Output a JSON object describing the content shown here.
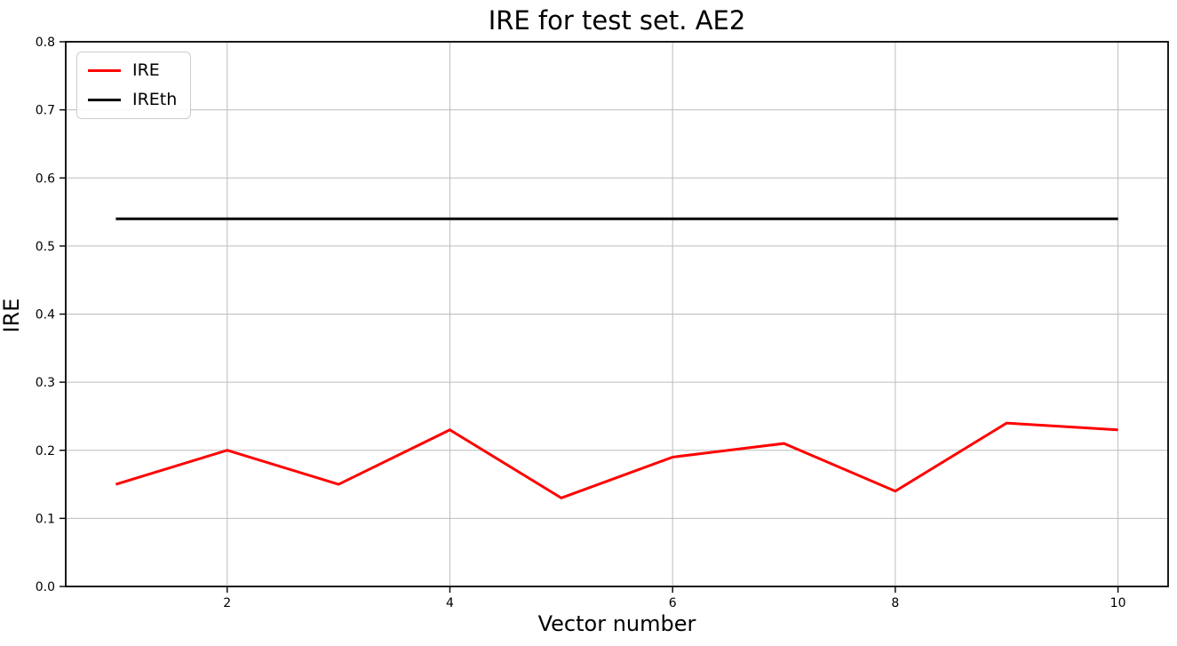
{
  "chart_data": {
    "type": "line",
    "title": "IRE for test set. AE2",
    "xlabel": "Vector number",
    "ylabel": "IRE",
    "x": [
      1,
      2,
      3,
      4,
      5,
      6,
      7,
      8,
      9,
      10
    ],
    "series": [
      {
        "name": "IRE",
        "color": "#ff0000",
        "values": [
          0.15,
          0.2,
          0.15,
          0.23,
          0.13,
          0.19,
          0.21,
          0.14,
          0.24,
          0.23
        ]
      },
      {
        "name": "IREth",
        "color": "#000000",
        "values": [
          0.54,
          0.54,
          0.54,
          0.54,
          0.54,
          0.54,
          0.54,
          0.54,
          0.54,
          0.54
        ]
      }
    ],
    "xlim": [
      0.55,
      10.45
    ],
    "ylim": [
      0.0,
      0.8
    ],
    "xticks": {
      "values": [
        2,
        4,
        6,
        8,
        10
      ],
      "labels": [
        "2",
        "4",
        "6",
        "8",
        "10"
      ]
    },
    "yticks": {
      "values": [
        0.0,
        0.1,
        0.2,
        0.3,
        0.4,
        0.5,
        0.6,
        0.7,
        0.8
      ],
      "labels": [
        "0.0",
        "0.1",
        "0.2",
        "0.3",
        "0.4",
        "0.5",
        "0.6",
        "0.7",
        "0.8"
      ]
    },
    "grid": true,
    "legend_position": "upper left",
    "line_width": 3,
    "colors": {
      "grid": "#bdbdbd",
      "axis": "#000000",
      "tick_label": "#000000",
      "background": "#ffffff",
      "legend_border": "#cccccc"
    }
  }
}
